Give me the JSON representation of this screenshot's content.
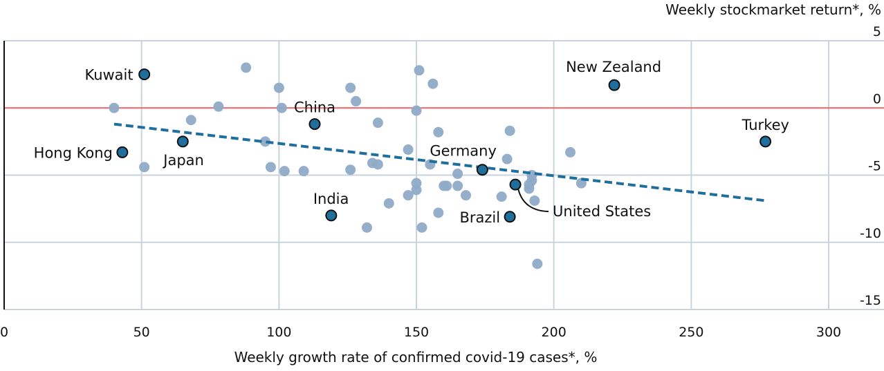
{
  "chart_data": {
    "type": "scatter",
    "xlabel": "Weekly growth rate of confirmed covid-19 cases*, %",
    "ylabel": "Weekly stockmarket return*, %",
    "xlim": [
      0,
      300
    ],
    "ylim": [
      -15,
      5
    ],
    "x_ticks": [
      "0",
      "50",
      "100",
      "150",
      "200",
      "250",
      "300"
    ],
    "y_ticks": [
      "5",
      "0",
      "-5",
      "-10",
      "-15"
    ],
    "grid": true,
    "colors": {
      "other_points": "#8fabc8",
      "highlighted_points": "#1f6e9c",
      "highlight_stroke": "#111111",
      "trend_line": "#1f6e9c",
      "zero_line": "#e8656a",
      "grid": "#c9d3de"
    },
    "highlighted": [
      {
        "label": "Kuwait",
        "x": 51,
        "y": 2.5
      },
      {
        "label": "Hong Kong",
        "x": 43,
        "y": -3.3
      },
      {
        "label": "Japan",
        "x": 65,
        "y": -2.5
      },
      {
        "label": "China",
        "x": 113,
        "y": -1.2
      },
      {
        "label": "India",
        "x": 119,
        "y": -8.0
      },
      {
        "label": "Germany",
        "x": 174,
        "y": -4.6
      },
      {
        "label": "Brazil",
        "x": 184,
        "y": -8.1
      },
      {
        "label": "United States",
        "x": 186,
        "y": -5.7
      },
      {
        "label": "New Zealand",
        "x": 222,
        "y": 1.7
      },
      {
        "label": "Turkey",
        "x": 277,
        "y": -2.5
      }
    ],
    "points": [
      {
        "x": 40,
        "y": 0.0
      },
      {
        "x": 51,
        "y": -4.4
      },
      {
        "x": 68,
        "y": -0.9
      },
      {
        "x": 78,
        "y": 0.1
      },
      {
        "x": 88,
        "y": 3.0
      },
      {
        "x": 95,
        "y": -2.5
      },
      {
        "x": 97,
        "y": -4.4
      },
      {
        "x": 100,
        "y": 1.5
      },
      {
        "x": 101,
        "y": 0.0
      },
      {
        "x": 102,
        "y": -4.7
      },
      {
        "x": 109,
        "y": -4.7
      },
      {
        "x": 126,
        "y": 1.5
      },
      {
        "x": 126,
        "y": -4.6
      },
      {
        "x": 128,
        "y": 0.5
      },
      {
        "x": 132,
        "y": -8.9
      },
      {
        "x": 134,
        "y": -4.1
      },
      {
        "x": 136,
        "y": -4.2
      },
      {
        "x": 136,
        "y": -1.1
      },
      {
        "x": 140,
        "y": -7.1
      },
      {
        "x": 147,
        "y": -6.5
      },
      {
        "x": 147,
        "y": -3.1
      },
      {
        "x": 150,
        "y": -5.6
      },
      {
        "x": 150,
        "y": -6.1
      },
      {
        "x": 150,
        "y": -0.2
      },
      {
        "x": 151,
        "y": 2.8
      },
      {
        "x": 152,
        "y": -8.9
      },
      {
        "x": 155,
        "y": -4.2
      },
      {
        "x": 156,
        "y": 1.8
      },
      {
        "x": 158,
        "y": -1.8
      },
      {
        "x": 158,
        "y": -7.8
      },
      {
        "x": 160,
        "y": -5.8
      },
      {
        "x": 161,
        "y": -5.8
      },
      {
        "x": 165,
        "y": -4.9
      },
      {
        "x": 165,
        "y": -5.8
      },
      {
        "x": 168,
        "y": -6.5
      },
      {
        "x": 181,
        "y": -6.6
      },
      {
        "x": 183,
        "y": -3.8
      },
      {
        "x": 184,
        "y": -1.7
      },
      {
        "x": 191,
        "y": -5.7
      },
      {
        "x": 191,
        "y": -6.0
      },
      {
        "x": 192,
        "y": -5.4
      },
      {
        "x": 192,
        "y": -5.0
      },
      {
        "x": 193,
        "y": -6.9
      },
      {
        "x": 194,
        "y": -11.6
      },
      {
        "x": 206,
        "y": -3.3
      },
      {
        "x": 210,
        "y": -5.6
      }
    ],
    "trend_line": {
      "x": [
        40,
        277
      ],
      "y": [
        -1.2,
        -6.9
      ]
    }
  }
}
